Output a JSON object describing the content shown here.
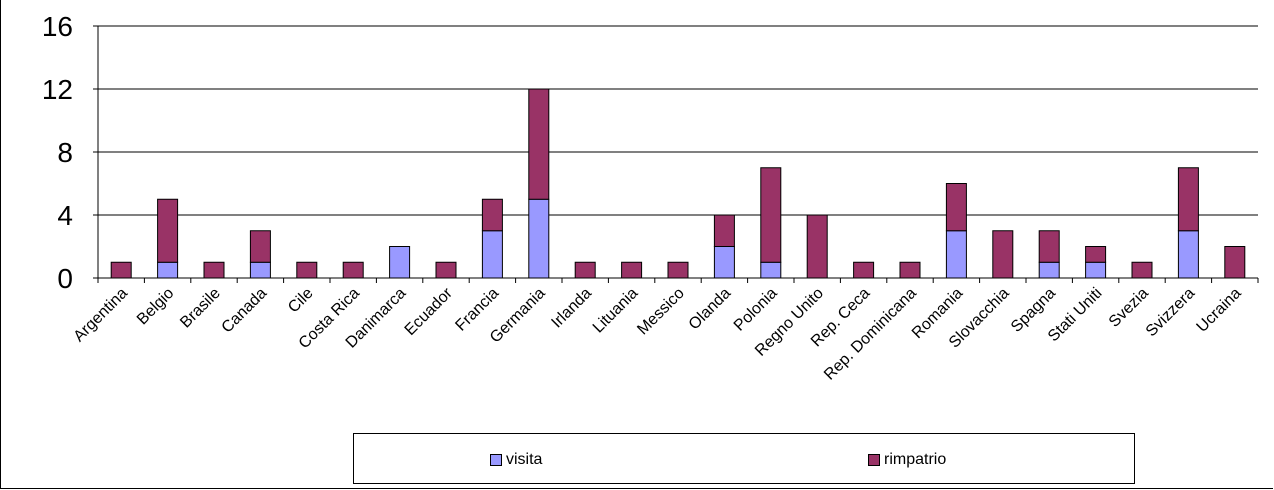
{
  "chart_data": {
    "type": "bar",
    "stacked": true,
    "categories": [
      "Argentina",
      "Belgio",
      "Brasile",
      "Canada",
      "Cile",
      "Costa Rica",
      "Danimarca",
      "Ecuador",
      "Francia",
      "Germania",
      "Irlanda",
      "Lituania",
      "Messico",
      "Olanda",
      "Polonia",
      "Regno Unito",
      "Rep. Ceca",
      "Rep. Dominicana",
      "Romania",
      "Slovacchia",
      "Spagna",
      "Stati Uniti",
      "Svezia",
      "Svizzera",
      "Ucraina"
    ],
    "series": [
      {
        "name": "visita",
        "color": "#9999ff",
        "values": [
          0,
          1,
          0,
          1,
          0,
          0,
          2,
          0,
          3,
          5,
          0,
          0,
          0,
          2,
          1,
          0,
          0,
          0,
          3,
          0,
          1,
          1,
          0,
          3,
          0
        ]
      },
      {
        "name": "rimpatrio",
        "color": "#993366",
        "values": [
          1,
          4,
          1,
          2,
          1,
          1,
          0,
          1,
          2,
          7,
          1,
          1,
          1,
          2,
          6,
          4,
          1,
          1,
          3,
          3,
          2,
          1,
          1,
          4,
          2
        ]
      }
    ],
    "ylim": [
      0,
      16
    ],
    "yticks": [
      "0",
      "4",
      "8",
      "12",
      "16"
    ],
    "grid": true,
    "legend_position": "bottom"
  }
}
